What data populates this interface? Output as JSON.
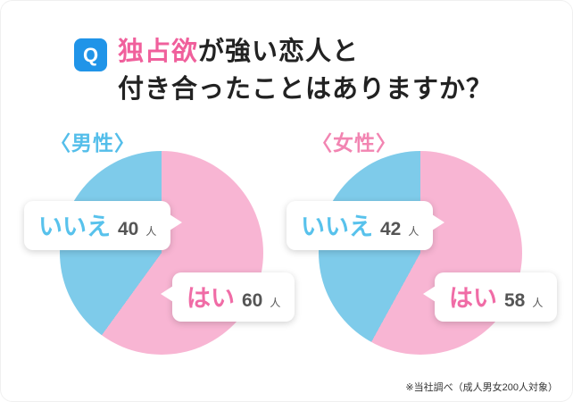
{
  "title": {
    "q_label": "Q",
    "accent": "独占欲",
    "line1_rest": "が強い恋人と",
    "line2": "付き合ったことはありますか？"
  },
  "charts": [
    {
      "header": "〈男性〉",
      "no_label": "いいえ",
      "no_value": "40",
      "yes_label": "はい",
      "yes_value": "60",
      "unit": "人"
    },
    {
      "header": "〈女性〉",
      "no_label": "いいえ",
      "no_value": "42",
      "yes_label": "はい",
      "yes_value": "58",
      "unit": "人"
    }
  ],
  "footnote": "※当社調べ（成人男女200人対象）",
  "colors": {
    "yes_slice": "#f8b5d3",
    "no_slice": "#7ecbea",
    "accent_pink": "#f0609c",
    "q_badge_blue": "#2094e8",
    "men_header_blue": "#54beea",
    "women_header_pink": "#f285b2"
  },
  "chart_data": [
    {
      "type": "pie",
      "title": "〈男性〉",
      "question": "独占欲が強い恋人と付き合ったことはありますか？",
      "labels": [
        "はい",
        "いいえ"
      ],
      "values": [
        60,
        40
      ],
      "unit": "人",
      "colors": [
        "#f8b5d3",
        "#7ecbea"
      ],
      "start_angle_deg": 0,
      "direction": "clockwise",
      "legend_position": "callout-bubbles"
    },
    {
      "type": "pie",
      "title": "〈女性〉",
      "question": "独占欲が強い恋人と付き合ったことはありますか？",
      "labels": [
        "はい",
        "いいえ"
      ],
      "values": [
        58,
        42
      ],
      "unit": "人",
      "colors": [
        "#f8b5d3",
        "#7ecbea"
      ],
      "start_angle_deg": 0,
      "direction": "clockwise",
      "legend_position": "callout-bubbles"
    }
  ]
}
